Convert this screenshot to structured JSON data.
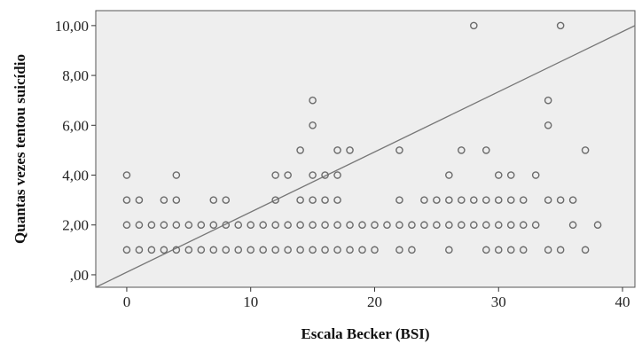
{
  "chart_data": {
    "type": "scatter",
    "xlabel": "Escala Becker (BSI)",
    "ylabel": "Quantas vezes tentou suicídio",
    "xlim": [
      -2.5,
      41
    ],
    "ylim": [
      -0.5,
      10.6
    ],
    "x_ticks": [
      0,
      10,
      20,
      30,
      40
    ],
    "x_tick_labels": [
      "0",
      "10",
      "20",
      "30",
      "40"
    ],
    "y_ticks": [
      0,
      2,
      4,
      6,
      8,
      10
    ],
    "y_tick_labels": [
      ",00",
      "2,00",
      "4,00",
      "6,00",
      "8,00",
      "10,00"
    ],
    "grid": false,
    "plot_background": "#eeeeee",
    "marker_color": "#6b6b6b",
    "fit_line_color": "#777777",
    "fit_line": {
      "x1": -2.5,
      "y1": -0.5,
      "x2": 41,
      "y2": 10.0
    },
    "points": [
      [
        0,
        4
      ],
      [
        0,
        3
      ],
      [
        1,
        3
      ],
      [
        0,
        2
      ],
      [
        1,
        2
      ],
      [
        2,
        2
      ],
      [
        0,
        1
      ],
      [
        1,
        1
      ],
      [
        2,
        1
      ],
      [
        3,
        1
      ],
      [
        4,
        1
      ],
      [
        3,
        2
      ],
      [
        4,
        2
      ],
      [
        3,
        3
      ],
      [
        4,
        3
      ],
      [
        4,
        4
      ],
      [
        5,
        1
      ],
      [
        5,
        2
      ],
      [
        6,
        1
      ],
      [
        6,
        2
      ],
      [
        7,
        1
      ],
      [
        7,
        2
      ],
      [
        7,
        3
      ],
      [
        8,
        1
      ],
      [
        8,
        2
      ],
      [
        8,
        3
      ],
      [
        9,
        1
      ],
      [
        9,
        2
      ],
      [
        10,
        1
      ],
      [
        10,
        2
      ],
      [
        11,
        1
      ],
      [
        11,
        2
      ],
      [
        12,
        1
      ],
      [
        12,
        2
      ],
      [
        12,
        3
      ],
      [
        12,
        4
      ],
      [
        13,
        1
      ],
      [
        13,
        2
      ],
      [
        13,
        4
      ],
      [
        14,
        1
      ],
      [
        14,
        2
      ],
      [
        14,
        3
      ],
      [
        14,
        5
      ],
      [
        15,
        1
      ],
      [
        15,
        2
      ],
      [
        15,
        3
      ],
      [
        15,
        4
      ],
      [
        15,
        6
      ],
      [
        15,
        7
      ],
      [
        16,
        1
      ],
      [
        16,
        2
      ],
      [
        16,
        3
      ],
      [
        16,
        4
      ],
      [
        17,
        1
      ],
      [
        17,
        2
      ],
      [
        17,
        3
      ],
      [
        17,
        4
      ],
      [
        17,
        5
      ],
      [
        18,
        1
      ],
      [
        18,
        2
      ],
      [
        18,
        5
      ],
      [
        19,
        1
      ],
      [
        19,
        2
      ],
      [
        20,
        1
      ],
      [
        20,
        2
      ],
      [
        21,
        2
      ],
      [
        22,
        1
      ],
      [
        22,
        2
      ],
      [
        22,
        3
      ],
      [
        22,
        5
      ],
      [
        23,
        1
      ],
      [
        23,
        2
      ],
      [
        24,
        2
      ],
      [
        24,
        3
      ],
      [
        25,
        2
      ],
      [
        25,
        3
      ],
      [
        26,
        1
      ],
      [
        26,
        2
      ],
      [
        26,
        3
      ],
      [
        26,
        4
      ],
      [
        27,
        2
      ],
      [
        27,
        3
      ],
      [
        27,
        5
      ],
      [
        28,
        2
      ],
      [
        28,
        3
      ],
      [
        28,
        10
      ],
      [
        29,
        1
      ],
      [
        29,
        2
      ],
      [
        29,
        3
      ],
      [
        29,
        5
      ],
      [
        30,
        1
      ],
      [
        30,
        2
      ],
      [
        30,
        3
      ],
      [
        30,
        4
      ],
      [
        31,
        1
      ],
      [
        31,
        2
      ],
      [
        31,
        3
      ],
      [
        31,
        4
      ],
      [
        32,
        1
      ],
      [
        32,
        2
      ],
      [
        32,
        3
      ],
      [
        33,
        2
      ],
      [
        33,
        4
      ],
      [
        34,
        1
      ],
      [
        34,
        3
      ],
      [
        34,
        6
      ],
      [
        34,
        7
      ],
      [
        35,
        1
      ],
      [
        35,
        3
      ],
      [
        35,
        10
      ],
      [
        36,
        2
      ],
      [
        36,
        3
      ],
      [
        37,
        1
      ],
      [
        37,
        5
      ],
      [
        38,
        2
      ]
    ]
  }
}
